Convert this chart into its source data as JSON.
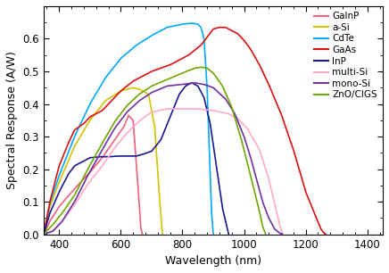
{
  "title": "",
  "xlabel": "Wavelength (nm)",
  "ylabel": "Spectral Response (A/W)",
  "xlim": [
    350,
    1450
  ],
  "ylim": [
    0,
    0.7
  ],
  "yticks": [
    0.0,
    0.1,
    0.2,
    0.3,
    0.4,
    0.5,
    0.6
  ],
  "xticks": [
    400,
    600,
    800,
    1000,
    1200,
    1400
  ],
  "curves": {
    "GaInP": {
      "color": "#f06080",
      "x": [
        350,
        370,
        400,
        450,
        500,
        540,
        580,
        610,
        625,
        640,
        655,
        665,
        670
      ],
      "y": [
        0.0,
        0.04,
        0.085,
        0.14,
        0.19,
        0.235,
        0.29,
        0.33,
        0.365,
        0.35,
        0.16,
        0.02,
        0.0
      ]
    },
    "a-Si": {
      "color": "#d4c400",
      "x": [
        350,
        370,
        400,
        450,
        500,
        550,
        600,
        640,
        660,
        690,
        710,
        725,
        735
      ],
      "y": [
        0.0,
        0.085,
        0.16,
        0.27,
        0.35,
        0.41,
        0.44,
        0.45,
        0.445,
        0.43,
        0.33,
        0.12,
        0.0
      ]
    },
    "CdTe": {
      "color": "#00aaff",
      "x": [
        350,
        370,
        400,
        450,
        500,
        550,
        600,
        650,
        700,
        750,
        800,
        830,
        850,
        860,
        870,
        880,
        890,
        895,
        900
      ],
      "y": [
        0.0,
        0.095,
        0.18,
        0.3,
        0.4,
        0.48,
        0.54,
        0.58,
        0.61,
        0.635,
        0.645,
        0.648,
        0.645,
        0.635,
        0.6,
        0.45,
        0.18,
        0.06,
        0.0
      ]
    },
    "GaAs": {
      "color": "#dd1010",
      "x": [
        350,
        370,
        400,
        430,
        450,
        480,
        500,
        520,
        540,
        560,
        580,
        600,
        640,
        700,
        760,
        820,
        860,
        880,
        900,
        920,
        940,
        960,
        980,
        1000,
        1020,
        1050,
        1080,
        1120,
        1160,
        1200,
        1230,
        1250,
        1260,
        1265
      ],
      "y": [
        0.0,
        0.1,
        0.21,
        0.28,
        0.32,
        0.34,
        0.36,
        0.37,
        0.38,
        0.4,
        0.42,
        0.44,
        0.47,
        0.5,
        0.52,
        0.55,
        0.58,
        0.605,
        0.63,
        0.635,
        0.635,
        0.625,
        0.615,
        0.595,
        0.57,
        0.52,
        0.46,
        0.37,
        0.26,
        0.13,
        0.06,
        0.015,
        0.003,
        0.0
      ]
    },
    "InP": {
      "color": "#1a1a90",
      "x": [
        350,
        370,
        400,
        430,
        450,
        480,
        500,
        530,
        560,
        590,
        610,
        630,
        650,
        670,
        700,
        730,
        760,
        790,
        810,
        830,
        850,
        870,
        890,
        910,
        930,
        950
      ],
      "y": [
        0.0,
        0.065,
        0.13,
        0.185,
        0.21,
        0.225,
        0.235,
        0.238,
        0.238,
        0.24,
        0.24,
        0.24,
        0.24,
        0.245,
        0.255,
        0.29,
        0.36,
        0.43,
        0.455,
        0.465,
        0.455,
        0.42,
        0.34,
        0.21,
        0.08,
        0.0
      ]
    },
    "multi-Si": {
      "color": "#ffaac8",
      "x": [
        350,
        380,
        410,
        450,
        490,
        540,
        580,
        610,
        640,
        670,
        700,
        750,
        800,
        850,
        900,
        950,
        980,
        1010,
        1050,
        1080,
        1100,
        1115,
        1125
      ],
      "y": [
        0.0,
        0.01,
        0.04,
        0.09,
        0.15,
        0.21,
        0.265,
        0.3,
        0.33,
        0.355,
        0.375,
        0.385,
        0.385,
        0.385,
        0.38,
        0.37,
        0.355,
        0.325,
        0.26,
        0.17,
        0.09,
        0.03,
        0.0
      ]
    },
    "mono-Si": {
      "color": "#7030a0",
      "x": [
        350,
        380,
        410,
        450,
        490,
        540,
        580,
        620,
        660,
        700,
        750,
        800,
        840,
        870,
        900,
        940,
        970,
        1000,
        1020,
        1040,
        1060,
        1080,
        1100,
        1115,
        1125
      ],
      "y": [
        0.0,
        0.01,
        0.04,
        0.1,
        0.175,
        0.26,
        0.325,
        0.375,
        0.41,
        0.435,
        0.455,
        0.46,
        0.465,
        0.46,
        0.45,
        0.415,
        0.37,
        0.3,
        0.24,
        0.17,
        0.1,
        0.05,
        0.015,
        0.004,
        0.0
      ]
    },
    "ZnO/CIGS": {
      "color": "#6ea800",
      "x": [
        350,
        380,
        410,
        450,
        490,
        540,
        580,
        620,
        660,
        700,
        750,
        800,
        840,
        860,
        880,
        900,
        930,
        960,
        990,
        1020,
        1050,
        1060,
        1070
      ],
      "y": [
        0.0,
        0.03,
        0.065,
        0.12,
        0.195,
        0.28,
        0.345,
        0.395,
        0.43,
        0.455,
        0.475,
        0.495,
        0.51,
        0.513,
        0.51,
        0.495,
        0.455,
        0.39,
        0.295,
        0.185,
        0.07,
        0.025,
        0.0
      ]
    }
  },
  "legend_order": [
    "GaInP",
    "a-Si",
    "CdTe",
    "GaAs",
    "InP",
    "multi-Si",
    "mono-Si",
    "ZnO/CIGS"
  ]
}
